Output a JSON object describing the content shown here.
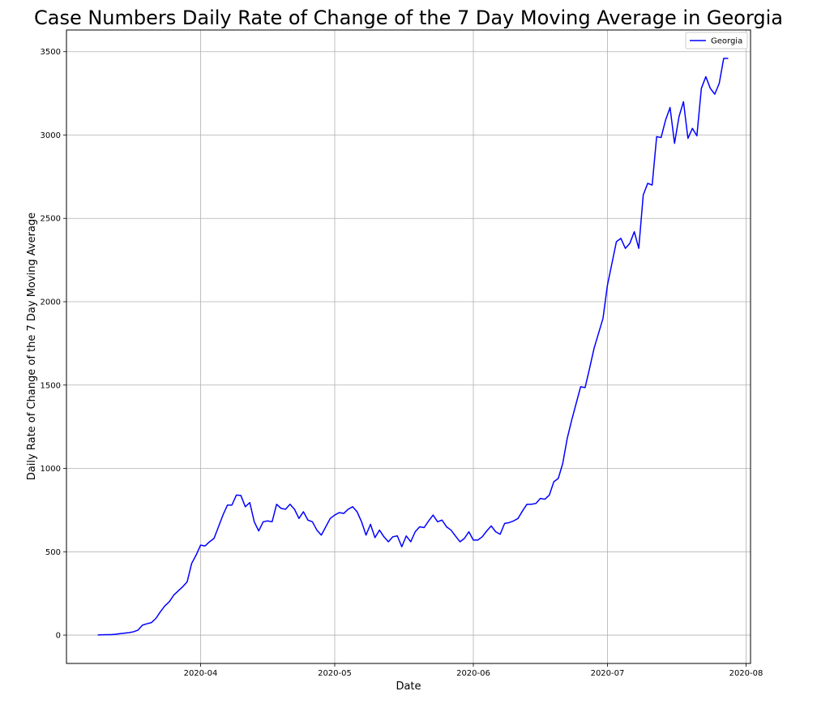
{
  "colors": {
    "line": "#0000ff",
    "grid": "#b0b0b0",
    "axes": "#000000",
    "background": "#ffffff",
    "legend_border": "#cccccc"
  },
  "chart_data": {
    "type": "line",
    "title": "Case Numbers Daily Rate of Change of the 7 Day Moving Average in Georgia",
    "xlabel": "Date",
    "ylabel": "Daily Rate of Change of the 7 Day Moving Average",
    "grid": true,
    "legend_position": "top-right",
    "xlim": [
      "2020-03-02",
      "2020-08-02"
    ],
    "ylim": [
      -170,
      3630
    ],
    "x_ticks": [
      {
        "date": "2020-04-01",
        "label": "2020-04"
      },
      {
        "date": "2020-05-01",
        "label": "2020-05"
      },
      {
        "date": "2020-06-01",
        "label": "2020-06"
      },
      {
        "date": "2020-07-01",
        "label": "2020-07"
      },
      {
        "date": "2020-08-01",
        "label": "2020-08"
      }
    ],
    "y_ticks": [
      0,
      500,
      1000,
      1500,
      2000,
      2500,
      3000,
      3500
    ],
    "series": [
      {
        "name": "Georgia",
        "x": [
          "2020-03-09",
          "2020-03-10",
          "2020-03-11",
          "2020-03-12",
          "2020-03-13",
          "2020-03-14",
          "2020-03-15",
          "2020-03-16",
          "2020-03-17",
          "2020-03-18",
          "2020-03-19",
          "2020-03-20",
          "2020-03-21",
          "2020-03-22",
          "2020-03-23",
          "2020-03-24",
          "2020-03-25",
          "2020-03-26",
          "2020-03-27",
          "2020-03-28",
          "2020-03-29",
          "2020-03-30",
          "2020-03-31",
          "2020-04-01",
          "2020-04-02",
          "2020-04-03",
          "2020-04-04",
          "2020-04-05",
          "2020-04-06",
          "2020-04-07",
          "2020-04-08",
          "2020-04-09",
          "2020-04-10",
          "2020-04-11",
          "2020-04-12",
          "2020-04-13",
          "2020-04-14",
          "2020-04-15",
          "2020-04-16",
          "2020-04-17",
          "2020-04-18",
          "2020-04-19",
          "2020-04-20",
          "2020-04-21",
          "2020-04-22",
          "2020-04-23",
          "2020-04-24",
          "2020-04-25",
          "2020-04-26",
          "2020-04-27",
          "2020-04-28",
          "2020-04-29",
          "2020-04-30",
          "2020-05-01",
          "2020-05-02",
          "2020-05-03",
          "2020-05-04",
          "2020-05-05",
          "2020-05-06",
          "2020-05-07",
          "2020-05-08",
          "2020-05-09",
          "2020-05-10",
          "2020-05-11",
          "2020-05-12",
          "2020-05-13",
          "2020-05-14",
          "2020-05-15",
          "2020-05-16",
          "2020-05-17",
          "2020-05-18",
          "2020-05-19",
          "2020-05-20",
          "2020-05-21",
          "2020-05-22",
          "2020-05-23",
          "2020-05-24",
          "2020-05-25",
          "2020-05-26",
          "2020-05-27",
          "2020-05-28",
          "2020-05-29",
          "2020-05-30",
          "2020-05-31",
          "2020-06-01",
          "2020-06-02",
          "2020-06-03",
          "2020-06-04",
          "2020-06-05",
          "2020-06-06",
          "2020-06-07",
          "2020-06-08",
          "2020-06-09",
          "2020-06-10",
          "2020-06-11",
          "2020-06-12",
          "2020-06-13",
          "2020-06-14",
          "2020-06-15",
          "2020-06-16",
          "2020-06-17",
          "2020-06-18",
          "2020-06-19",
          "2020-06-20",
          "2020-06-21",
          "2020-06-22",
          "2020-06-23",
          "2020-06-24",
          "2020-06-25",
          "2020-06-26",
          "2020-06-27",
          "2020-06-28",
          "2020-06-29",
          "2020-06-30",
          "2020-07-01",
          "2020-07-02",
          "2020-07-03",
          "2020-07-04",
          "2020-07-05",
          "2020-07-06",
          "2020-07-07",
          "2020-07-08",
          "2020-07-09",
          "2020-07-10",
          "2020-07-11",
          "2020-07-12",
          "2020-07-13",
          "2020-07-14",
          "2020-07-15",
          "2020-07-16",
          "2020-07-17",
          "2020-07-18",
          "2020-07-19",
          "2020-07-20",
          "2020-07-21",
          "2020-07-22",
          "2020-07-23",
          "2020-07-24",
          "2020-07-25",
          "2020-07-26",
          "2020-07-27",
          "2020-07-28"
        ],
        "y": [
          1,
          2,
          3,
          3,
          5,
          9,
          12,
          15,
          20,
          30,
          60,
          68,
          75,
          100,
          140,
          175,
          200,
          240,
          265,
          290,
          320,
          430,
          480,
          540,
          535,
          560,
          580,
          650,
          720,
          780,
          780,
          840,
          838,
          770,
          795,
          680,
          625,
          680,
          685,
          680,
          785,
          760,
          755,
          785,
          755,
          700,
          740,
          690,
          680,
          630,
          600,
          650,
          700,
          720,
          735,
          730,
          755,
          770,
          740,
          680,
          600,
          665,
          585,
          630,
          590,
          560,
          590,
          595,
          530,
          595,
          560,
          620,
          650,
          645,
          685,
          720,
          680,
          690,
          650,
          630,
          595,
          560,
          580,
          620,
          570,
          570,
          590,
          625,
          655,
          620,
          605,
          670,
          675,
          685,
          700,
          745,
          785,
          785,
          790,
          820,
          815,
          840,
          920,
          940,
          1030,
          1180,
          1290,
          1390,
          1490,
          1485,
          1600,
          1720,
          1810,
          1900,
          2100,
          2230,
          2360,
          2380,
          2320,
          2350,
          2420,
          2320,
          2640,
          2710,
          2700,
          2990,
          2985,
          3090,
          3165,
          2950,
          3110,
          3200,
          2980,
          3040,
          2995,
          3280,
          3350,
          3280,
          3245,
          3310,
          3460,
          3460
        ]
      }
    ]
  }
}
